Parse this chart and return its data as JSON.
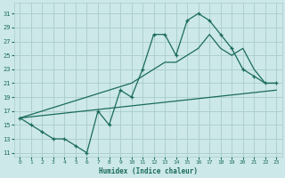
{
  "xlabel": "Humidex (Indice chaleur)",
  "bg_color": "#cce8e8",
  "grid_color": "#aacccc",
  "line_color": "#1a6b5a",
  "xlim": [
    -0.5,
    23.5
  ],
  "ylim": [
    10.5,
    32.5
  ],
  "xticks": [
    0,
    1,
    2,
    3,
    4,
    5,
    6,
    7,
    8,
    9,
    10,
    11,
    12,
    13,
    14,
    15,
    16,
    17,
    18,
    19,
    20,
    21,
    22,
    23
  ],
  "yticks": [
    11,
    13,
    15,
    17,
    19,
    21,
    23,
    25,
    27,
    29,
    31
  ],
  "line1_x": [
    0,
    1,
    2,
    3,
    4,
    5,
    6,
    7,
    8,
    9,
    10,
    11,
    12,
    13,
    14,
    15,
    16,
    17,
    18,
    19,
    20,
    21,
    22,
    23
  ],
  "line1_y": [
    16,
    15,
    14,
    13,
    13,
    12,
    11,
    17,
    15,
    20,
    19,
    23,
    28,
    28,
    25,
    30,
    31,
    30,
    28,
    26,
    23,
    22,
    21,
    21
  ],
  "line2_x": [
    0,
    10,
    11,
    12,
    13,
    14,
    15,
    16,
    17,
    18,
    19,
    20,
    21,
    22,
    23
  ],
  "line2_y": [
    16,
    21,
    22,
    23,
    24,
    24,
    25,
    26,
    28,
    26,
    25,
    26,
    23,
    21,
    21
  ],
  "line3_x": [
    0,
    23
  ],
  "line3_y": [
    16,
    20
  ]
}
